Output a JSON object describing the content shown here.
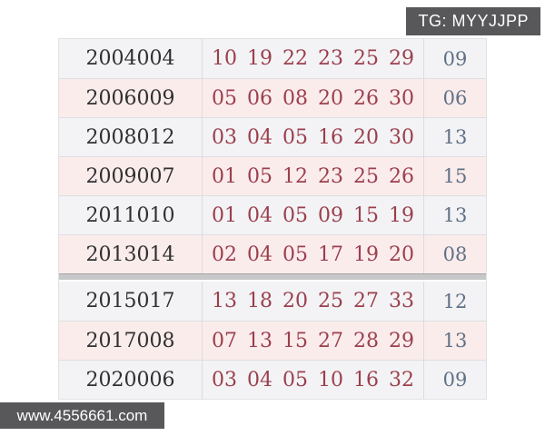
{
  "badge": {
    "label": "TG: MYYJJPP"
  },
  "watermark": {
    "label": "www.4556661.com"
  },
  "colors": {
    "red_number": "#9b3f4d",
    "blue_number": "#5f7186",
    "period_text": "#303030",
    "row_light": "#f3f3f5",
    "row_pink": "#fbecec",
    "overlay_background": "#58585a",
    "row_border": "#dedee0"
  },
  "table": {
    "sections": [
      {
        "rows": [
          {
            "period": "2004004",
            "reds": [
              "10",
              "19",
              "22",
              "23",
              "25",
              "29"
            ],
            "blue": "09"
          },
          {
            "period": "2006009",
            "reds": [
              "05",
              "06",
              "08",
              "20",
              "26",
              "30"
            ],
            "blue": "06"
          },
          {
            "period": "2008012",
            "reds": [
              "03",
              "04",
              "05",
              "16",
              "20",
              "30"
            ],
            "blue": "13"
          },
          {
            "period": "2009007",
            "reds": [
              "01",
              "05",
              "12",
              "23",
              "25",
              "26"
            ],
            "blue": "15"
          },
          {
            "period": "2011010",
            "reds": [
              "01",
              "04",
              "05",
              "09",
              "15",
              "19"
            ],
            "blue": "13"
          },
          {
            "period": "2013014",
            "reds": [
              "02",
              "04",
              "05",
              "17",
              "19",
              "20"
            ],
            "blue": "08"
          }
        ]
      },
      {
        "rows": [
          {
            "period": "2015017",
            "reds": [
              "13",
              "18",
              "20",
              "25",
              "27",
              "33"
            ],
            "blue": "12"
          },
          {
            "period": "2017008",
            "reds": [
              "07",
              "13",
              "15",
              "27",
              "28",
              "29"
            ],
            "blue": "13"
          },
          {
            "period": "2020006",
            "reds": [
              "03",
              "04",
              "05",
              "10",
              "16",
              "32"
            ],
            "blue": "09"
          }
        ]
      }
    ]
  }
}
